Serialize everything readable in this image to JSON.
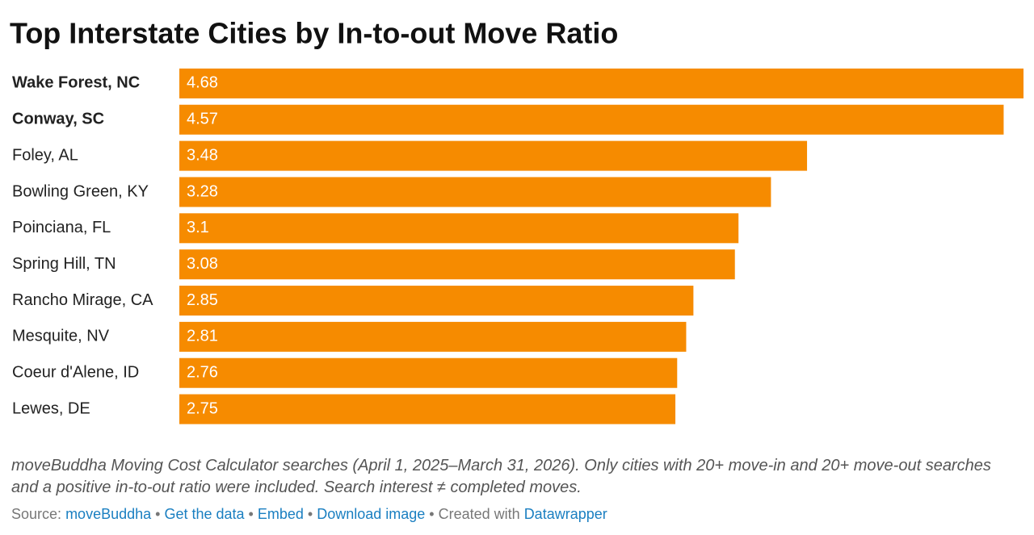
{
  "chart_data": {
    "type": "bar",
    "orientation": "horizontal",
    "title": "Top Interstate Cities by In-to-out Move Ratio",
    "categories": [
      "Wake Forest, NC",
      "Conway, SC",
      "Foley, AL",
      "Bowling Green, KY",
      "Poinciana, FL",
      "Spring Hill, TN",
      "Rancho Mirage, CA",
      "Mesquite, NV",
      "Coeur d'Alene, ID",
      "Lewes, DE"
    ],
    "values": [
      4.68,
      4.57,
      3.48,
      3.28,
      3.1,
      3.08,
      2.85,
      2.81,
      2.76,
      2.75
    ],
    "color": "#f68b00",
    "notes": "moveBuddha Moving Cost Calculator searches (April 1, 2025–March 31, 2026). Only cities with 20+ move-in and 20+ move-out searches and a positive in-to-out ratio were included. Search interest ≠ completed moves.",
    "source_label": "Source:",
    "source": "moveBuddha",
    "links": [
      "Get the data",
      "Embed",
      "Download image"
    ],
    "credit_label": "Created with",
    "credit": "Datawrapper"
  }
}
